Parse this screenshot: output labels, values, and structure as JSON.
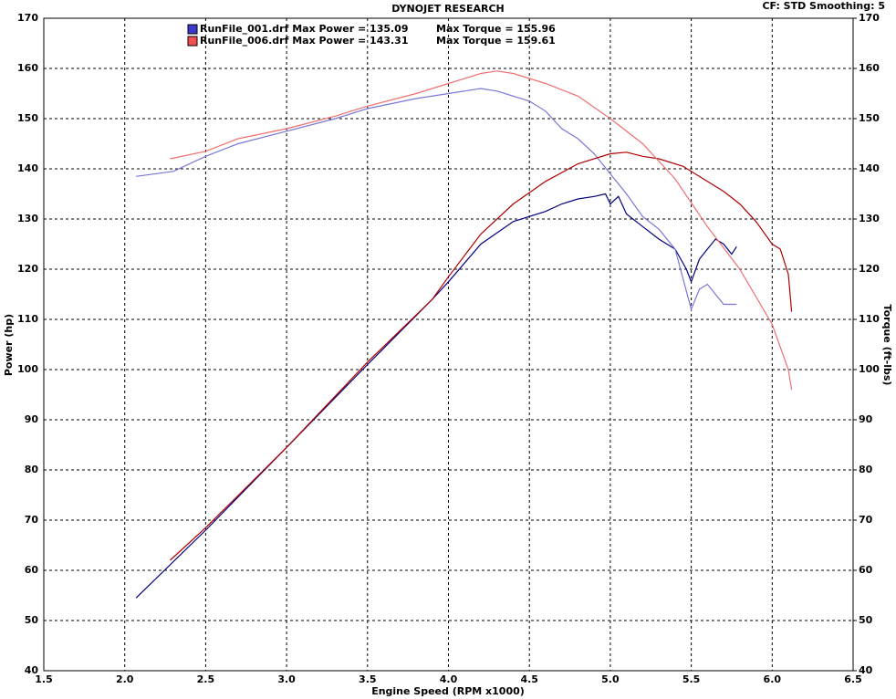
{
  "chart_data": {
    "type": "line",
    "title": "DYNOJET RESEARCH",
    "subtitle": "CF: STD  Smoothing: 5",
    "xlabel": "Engine Speed (RPM x1000)",
    "ylabel": "Power (hp)",
    "y2label": "Torque (ft-lbs)",
    "legend": [
      {
        "text": "RunFile_001.drf Max Power = 135.09",
        "torque_text": "Max Torque = 155.96",
        "color": "#3a3ad0"
      },
      {
        "text": "RunFile_006.drf Max Power = 143.31",
        "torque_text": "Max Torque = 159.61",
        "color": "#f05050"
      }
    ],
    "xlim": [
      1.5,
      6.5
    ],
    "xticks": [
      1.5,
      {
        "value": 2,
        "label": "2.0"
      },
      2.5,
      {
        "value": 3,
        "label": "3.0"
      },
      3.5,
      {
        "value": 4,
        "label": "4.0"
      },
      4.5,
      {
        "value": 5,
        "label": "5.0"
      },
      5.5,
      {
        "value": 6,
        "label": "6.0"
      },
      6.5
    ],
    "ylim": [
      40,
      170
    ],
    "yticks": [
      40,
      50,
      60,
      70,
      80,
      90,
      100,
      110,
      120,
      130,
      140,
      150,
      160,
      170
    ],
    "y2lim": [
      40,
      170
    ],
    "y2ticks": [
      40,
      50,
      60,
      70,
      80,
      90,
      100,
      110,
      120,
      130,
      140,
      150,
      160,
      170
    ],
    "grid": true,
    "series": [
      {
        "color": "#000080",
        "x": [
          2.07,
          2.5,
          3.0,
          3.5,
          3.9,
          4.0,
          4.2,
          4.4,
          4.6,
          4.7,
          4.8,
          4.9,
          4.97,
          5.0,
          5.05,
          5.1,
          5.2,
          5.3,
          5.4,
          5.47,
          5.5,
          5.55,
          5.6,
          5.65,
          5.7,
          5.75,
          5.78
        ],
        "values": [
          54.5,
          68,
          84.5,
          101,
          114,
          117.5,
          125,
          129.5,
          131.5,
          133,
          134,
          134.5,
          135,
          133,
          134.5,
          131,
          128.5,
          126,
          124,
          120,
          117.5,
          122,
          124,
          126,
          125,
          123,
          124.5
        ]
      },
      {
        "color": "#7878d8",
        "axis": "y2",
        "x": [
          2.07,
          2.3,
          2.5,
          2.7,
          3.0,
          3.3,
          3.5,
          3.8,
          4.0,
          4.2,
          4.3,
          4.5,
          4.6,
          4.7,
          4.8,
          4.9,
          5.0,
          5.05,
          5.1,
          5.2,
          5.3,
          5.4,
          5.5,
          5.55,
          5.6,
          5.7,
          5.78
        ],
        "values": [
          138.5,
          139.5,
          142.5,
          145,
          147.5,
          150,
          152,
          154,
          155,
          156,
          155.5,
          153.5,
          151.5,
          148,
          146,
          143,
          139,
          137,
          135,
          130.5,
          128,
          124,
          112,
          116,
          117,
          113,
          113
        ]
      },
      {
        "color": "#b00000",
        "x": [
          2.28,
          2.5,
          3.0,
          3.5,
          3.9,
          4.0,
          4.2,
          4.4,
          4.6,
          4.8,
          5.0,
          5.1,
          5.2,
          5.3,
          5.45,
          5.6,
          5.7,
          5.8,
          5.9,
          6.0,
          6.05,
          6.1,
          6.12
        ],
        "values": [
          62,
          68.5,
          84.5,
          101.5,
          114,
          118.5,
          127,
          133,
          137.5,
          141,
          143,
          143.3,
          142.5,
          142,
          140.5,
          137.5,
          135.5,
          133,
          129.5,
          125,
          124,
          119,
          111.5
        ]
      },
      {
        "color": "#f07070",
        "axis": "y2",
        "x": [
          2.28,
          2.5,
          2.7,
          3.0,
          3.3,
          3.5,
          3.8,
          4.0,
          4.2,
          4.3,
          4.4,
          4.6,
          4.8,
          5.0,
          5.2,
          5.4,
          5.6,
          5.8,
          6.0,
          6.1,
          6.12
        ],
        "values": [
          142,
          143.5,
          146,
          148,
          150.5,
          152.5,
          155,
          157,
          159,
          159.5,
          159,
          157,
          154.5,
          150,
          145,
          138,
          128.5,
          120,
          109,
          100,
          96
        ]
      }
    ]
  }
}
